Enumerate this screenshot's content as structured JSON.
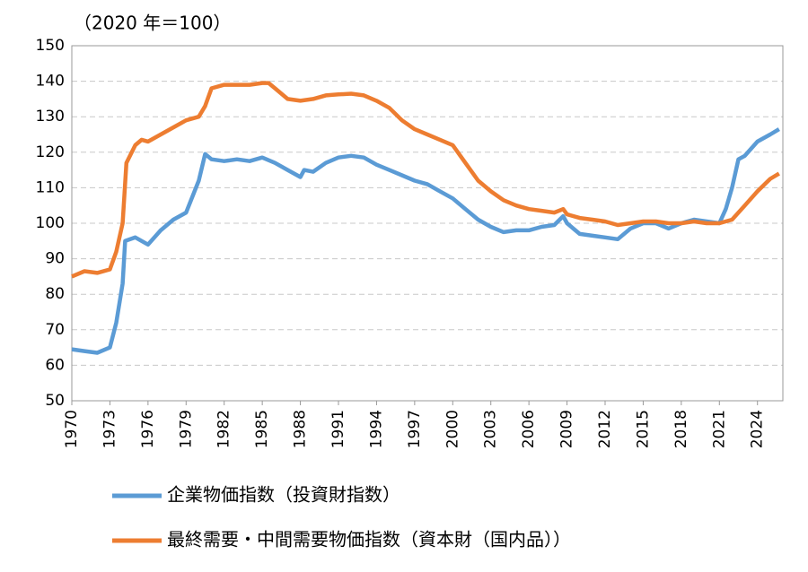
{
  "chart_data": {
    "type": "line",
    "title": "（2020 年＝100）",
    "xlim": [
      1970,
      2026
    ],
    "xticks": [
      1970,
      1973,
      1976,
      1979,
      1982,
      1985,
      1988,
      1991,
      1994,
      1997,
      2000,
      2003,
      2006,
      2009,
      2012,
      2015,
      2018,
      2021,
      2024
    ],
    "ylim": [
      50,
      150
    ],
    "yticks": [
      50,
      60,
      70,
      80,
      90,
      100,
      110,
      120,
      130,
      140,
      150
    ],
    "grid": true,
    "legend": "bottom",
    "series": [
      {
        "name": "企業物価指数（投資財指数）",
        "color": "#5b9bd5",
        "x": [
          1970,
          1971,
          1972,
          1973,
          1973.5,
          1974,
          1974.2,
          1975,
          1976,
          1977,
          1978,
          1979,
          1980,
          1980.5,
          1981,
          1982,
          1983,
          1984,
          1985,
          1986,
          1987,
          1988,
          1988.3,
          1989,
          1990,
          1991,
          1992,
          1993,
          1994,
          1995,
          1996,
          1997,
          1998,
          1999,
          2000,
          2001,
          2002,
          2003,
          2004,
          2005,
          2006,
          2007,
          2008,
          2008.7,
          2009,
          2010,
          2011,
          2012,
          2013,
          2014,
          2015,
          2016,
          2017,
          2018,
          2019,
          2020,
          2021,
          2021.5,
          2022,
          2022.5,
          2023,
          2024,
          2025,
          2025.7
        ],
        "values": [
          64.5,
          64,
          63.5,
          65,
          72,
          83,
          95,
          96,
          94,
          98,
          101,
          103,
          112,
          119.5,
          118,
          117.5,
          118,
          117.5,
          118.5,
          117,
          115,
          113,
          115,
          114.5,
          117,
          118.5,
          119,
          118.5,
          116.5,
          115,
          113.5,
          112,
          111,
          109,
          107,
          104,
          101,
          99,
          97.5,
          98,
          98,
          99,
          99.5,
          102,
          100,
          97,
          96.5,
          96,
          95.5,
          98.5,
          100,
          100,
          98.5,
          100,
          101,
          100.5,
          100,
          104,
          110,
          118,
          119,
          123,
          125,
          126.5
        ]
      },
      {
        "name": "最終需要・中間需要物価指数（資本財（国内品））",
        "color": "#ed7d31",
        "x": [
          1970,
          1971,
          1972,
          1973,
          1973.5,
          1974,
          1974.3,
          1975,
          1975.5,
          1976,
          1977,
          1978,
          1979,
          1980,
          1980.5,
          1981,
          1982,
          1983,
          1984,
          1985,
          1985.5,
          1986,
          1987,
          1988,
          1989,
          1990,
          1991,
          1992,
          1993,
          1994,
          1995,
          1996,
          1997,
          1998,
          1999,
          2000,
          2001,
          2002,
          2003,
          2004,
          2005,
          2006,
          2007,
          2008,
          2008.7,
          2009,
          2010,
          2011,
          2012,
          2013,
          2014,
          2015,
          2016,
          2017,
          2018,
          2019,
          2020,
          2021,
          2022,
          2023,
          2024,
          2025,
          2025.7
        ],
        "values": [
          85,
          86.5,
          86,
          87,
          92,
          100,
          117,
          122,
          123.5,
          123,
          125,
          127,
          129,
          130,
          133,
          138,
          139,
          139,
          139,
          139.5,
          139.5,
          138,
          135,
          134.5,
          135,
          136,
          136.3,
          136.5,
          136,
          134.5,
          132.5,
          129,
          126.5,
          125,
          123.5,
          122,
          117,
          112,
          109,
          106.5,
          105,
          104,
          103.5,
          103,
          104,
          102.5,
          101.5,
          101,
          100.5,
          99.5,
          100,
          100.5,
          100.5,
          100,
          100,
          100.5,
          100,
          100,
          101,
          105,
          109,
          112.5,
          114
        ]
      }
    ]
  }
}
